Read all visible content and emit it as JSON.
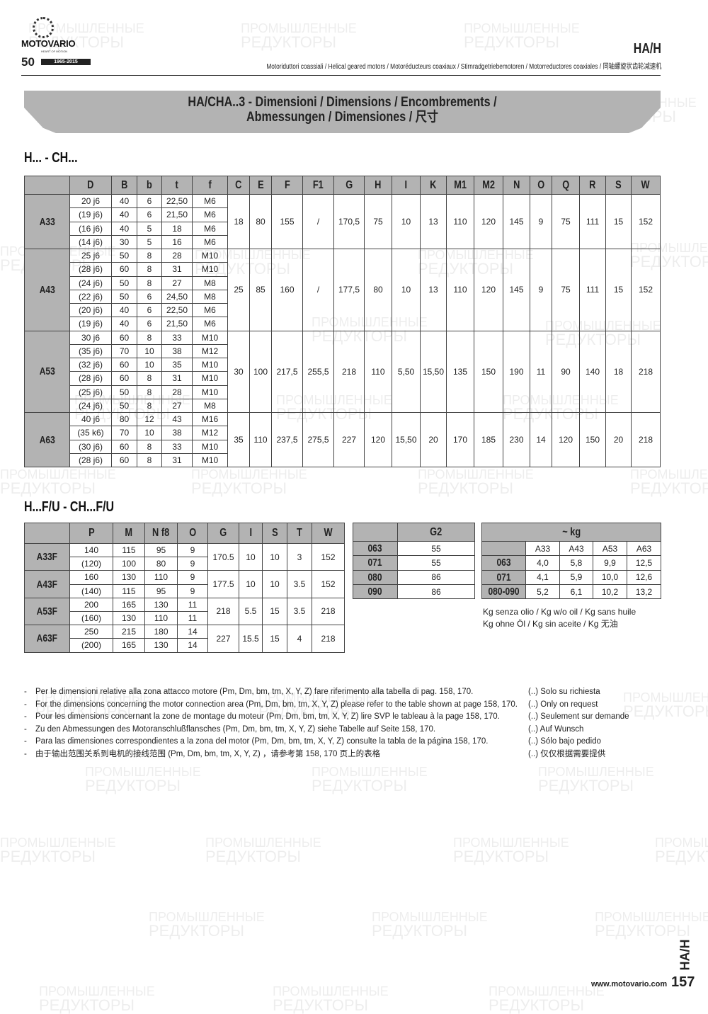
{
  "header": {
    "logo_text": "MOTOVARIO",
    "logo_tagline": "HEART OF MOTION",
    "logo_anniversary": "50",
    "logo_years": "1965-2015",
    "series": "HA/H",
    "subtitle": "Motoriduttori coassiali / Helical geared motors / Motoréducteurs coaxiaux / Stirnradgetriebemotoren / Motorreductores coaxiales / 同轴螺旋状齿轮减速机"
  },
  "banner": {
    "line1": "HA/CHA..3 - Dimensioni / Dimensions / Encombrements /",
    "line2": "Abmessungen / Dimensiones / 尺寸"
  },
  "watermark": {
    "line1": "ПРОМЫШЛЕННЫЕ",
    "line2": "РЕДУКТОРЫ"
  },
  "table1": {
    "title": "H... - CH...",
    "headers": [
      "",
      "D",
      "B",
      "b",
      "t",
      "f",
      "C",
      "E",
      "F",
      "F1",
      "G",
      "H",
      "I",
      "K",
      "M1",
      "M2",
      "N",
      "O",
      "Q",
      "R",
      "S",
      "W"
    ],
    "groups": [
      {
        "label": "A33",
        "rows": [
          [
            "20 j6",
            "40",
            "6",
            "22,50",
            "M6"
          ],
          [
            "(19 j6)",
            "40",
            "6",
            "21,50",
            "M6"
          ],
          [
            "(16 j6)",
            "40",
            "5",
            "18",
            "M6"
          ],
          [
            "(14 j6)",
            "30",
            "5",
            "16",
            "M6"
          ]
        ],
        "common": [
          "18",
          "80",
          "155",
          "/",
          "170,5",
          "75",
          "10",
          "13",
          "110",
          "120",
          "145",
          "9",
          "75",
          "111",
          "15",
          "152"
        ]
      },
      {
        "label": "A43",
        "rows": [
          [
            "25 j6",
            "50",
            "8",
            "28",
            "M10"
          ],
          [
            "(28 j6)",
            "60",
            "8",
            "31",
            "M10"
          ],
          [
            "(24 j6)",
            "50",
            "8",
            "27",
            "M8"
          ],
          [
            "(22 j6)",
            "50",
            "6",
            "24,50",
            "M8"
          ],
          [
            "(20 j6)",
            "40",
            "6",
            "22,50",
            "M6"
          ],
          [
            "(19 j6)",
            "40",
            "6",
            "21,50",
            "M6"
          ]
        ],
        "common": [
          "25",
          "85",
          "160",
          "/",
          "177,5",
          "80",
          "10",
          "13",
          "110",
          "120",
          "145",
          "9",
          "75",
          "111",
          "15",
          "152"
        ]
      },
      {
        "label": "A53",
        "rows": [
          [
            "30 j6",
            "60",
            "8",
            "33",
            "M10"
          ],
          [
            "(35 j6)",
            "70",
            "10",
            "38",
            "M12"
          ],
          [
            "(32 j6)",
            "60",
            "10",
            "35",
            "M10"
          ],
          [
            "(28 j6)",
            "60",
            "8",
            "31",
            "M10"
          ],
          [
            "(25 j6)",
            "50",
            "8",
            "28",
            "M10"
          ],
          [
            "(24 j6)",
            "50",
            "8",
            "27",
            "M8"
          ]
        ],
        "common": [
          "30",
          "100",
          "217,5",
          "255,5",
          "218",
          "110",
          "5,50",
          "15,50",
          "135",
          "150",
          "190",
          "11",
          "90",
          "140",
          "18",
          "218"
        ]
      },
      {
        "label": "A63",
        "rows": [
          [
            "40 j6",
            "80",
            "12",
            "43",
            "M16"
          ],
          [
            "(35 k6)",
            "70",
            "10",
            "38",
            "M12"
          ],
          [
            "(30 j6)",
            "60",
            "8",
            "33",
            "M10"
          ],
          [
            "(28 j6)",
            "60",
            "8",
            "31",
            "M10"
          ]
        ],
        "common": [
          "35",
          "110",
          "237,5",
          "275,5",
          "227",
          "120",
          "15,50",
          "20",
          "170",
          "185",
          "230",
          "14",
          "120",
          "150",
          "20",
          "218"
        ]
      }
    ]
  },
  "table2": {
    "title": "H...F/U - CH...F/U",
    "headers": [
      "",
      "P",
      "M",
      "N f8",
      "O",
      "G",
      "I",
      "S",
      "T",
      "W"
    ],
    "groups": [
      {
        "label": "A33F",
        "rows": [
          [
            "140",
            "115",
            "95",
            "9"
          ],
          [
            "(120)",
            "100",
            "80",
            "9"
          ]
        ],
        "common": [
          "170.5",
          "10",
          "10",
          "3",
          "152"
        ]
      },
      {
        "label": "A43F",
        "rows": [
          [
            "160",
            "130",
            "110",
            "9"
          ],
          [
            "(140)",
            "115",
            "95",
            "9"
          ]
        ],
        "common": [
          "177.5",
          "10",
          "10",
          "3.5",
          "152"
        ]
      },
      {
        "label": "A53F",
        "rows": [
          [
            "200",
            "165",
            "130",
            "11"
          ],
          [
            "(160)",
            "130",
            "110",
            "11"
          ]
        ],
        "common": [
          "218",
          "5.5",
          "15",
          "3.5",
          "218"
        ]
      },
      {
        "label": "A63F",
        "rows": [
          [
            "250",
            "215",
            "180",
            "14"
          ],
          [
            "(200)",
            "165",
            "130",
            "14"
          ]
        ],
        "common": [
          "227",
          "15.5",
          "15",
          "4",
          "218"
        ]
      }
    ]
  },
  "table3": {
    "headers": [
      "",
      "G2"
    ],
    "rows": [
      [
        "063",
        "55"
      ],
      [
        "071",
        "55"
      ],
      [
        "080",
        "86"
      ],
      [
        "090",
        "86"
      ]
    ]
  },
  "table4": {
    "title": "~ kg",
    "columns": [
      "A33",
      "A43",
      "A53",
      "A63"
    ],
    "rows": [
      [
        "063",
        "4,0",
        "5,8",
        "9,9",
        "12,5"
      ],
      [
        "071",
        "4,1",
        "5,9",
        "10,0",
        "12,6"
      ],
      [
        "080-090",
        "5,2",
        "6,1",
        "10,2",
        "13,2"
      ]
    ],
    "note1": "Kg senza olio / Kg w/o oil / Kg sans huile",
    "note2": "Kg ohne Öl / Kg sin aceite / Kg 无油"
  },
  "notes": [
    "Per le dimensioni relative alla zona attacco motore (Pm, Dm, bm, tm, X, Y, Z) fare riferimento alla tabella di pag. 158, 170.",
    "For the dimensions concerning the motor connection area (Pm, Dm, bm, tm, X, Y, Z) please refer to the table shown at page 158, 170.",
    "Pour les dimensions concernant la zone de montage du  moteur (Pm, Dm, bm, tm, X, Y, Z) lire SVP le tableau à la page 158, 170.",
    "Zu den Abmessungen des Motoranschlußflansches  (Pm, Dm, bm, tm, X, Y, Z) siehe Tabelle auf Seite 158, 170.",
    "Para las dimensiones correspondientes a la zona del motor (Pm, Dm, bm, tm, X, Y, Z) consulte la tabla de la página 158, 170.",
    "由于输出范围关系到电机的接线范围 (Pm, Dm, bm, tm, X, Y, Z) ，请参考第 158, 170 页上的表格"
  ],
  "notes_dash": "-",
  "on_request": [
    "(..) Solo su richiesta",
    "(..) Only on request",
    "(..) Seulement sur demande",
    "(..) Auf Wunsch",
    "(..) Sólo bajo pedido",
    "(..) 仅仅根据需要提供"
  ],
  "footer": {
    "url": "www.motovario.com",
    "page": "157",
    "side_label": "HA/H"
  }
}
